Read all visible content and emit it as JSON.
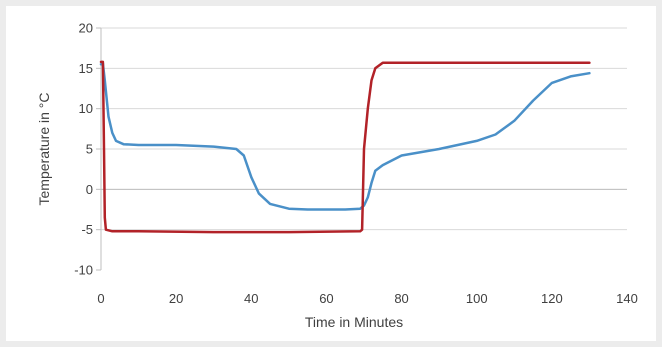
{
  "chart_data": {
    "type": "line",
    "title": "",
    "xlabel": "Time in Minutes",
    "ylabel": "Temperature in °C",
    "xlim": [
      0,
      140
    ],
    "ylim": [
      -10,
      20
    ],
    "x_ticks": [
      0,
      20,
      40,
      60,
      80,
      100,
      120,
      140
    ],
    "y_ticks": [
      -10,
      -5,
      0,
      5,
      10,
      15,
      20
    ],
    "grid": "horizontal",
    "legend": "none",
    "series": [
      {
        "color": "#4a90c8",
        "points": [
          [
            0,
            15.5
          ],
          [
            0.5,
            15.6
          ],
          [
            1,
            13.5
          ],
          [
            2,
            9.0
          ],
          [
            3,
            7.0
          ],
          [
            4,
            6.0
          ],
          [
            6,
            5.6
          ],
          [
            10,
            5.5
          ],
          [
            20,
            5.5
          ],
          [
            30,
            5.3
          ],
          [
            36,
            5.0
          ],
          [
            38,
            4.2
          ],
          [
            40,
            1.5
          ],
          [
            42,
            -0.5
          ],
          [
            45,
            -1.8
          ],
          [
            50,
            -2.4
          ],
          [
            55,
            -2.5
          ],
          [
            60,
            -2.5
          ],
          [
            65,
            -2.5
          ],
          [
            69,
            -2.4
          ],
          [
            70,
            -2.0
          ],
          [
            71,
            -1.0
          ],
          [
            72,
            0.8
          ],
          [
            73,
            2.3
          ],
          [
            75,
            3.0
          ],
          [
            80,
            4.2
          ],
          [
            90,
            5.0
          ],
          [
            100,
            6.0
          ],
          [
            105,
            6.8
          ],
          [
            110,
            8.5
          ],
          [
            115,
            11.0
          ],
          [
            120,
            13.2
          ],
          [
            125,
            14.0
          ],
          [
            130,
            14.4
          ]
        ]
      },
      {
        "color": "#b22228",
        "points": [
          [
            0,
            15.8
          ],
          [
            0.5,
            15.8
          ],
          [
            0.8,
            5.0
          ],
          [
            1.0,
            -3.5
          ],
          [
            1.3,
            -5.0
          ],
          [
            3,
            -5.2
          ],
          [
            10,
            -5.2
          ],
          [
            30,
            -5.3
          ],
          [
            50,
            -5.3
          ],
          [
            69,
            -5.2
          ],
          [
            69.5,
            -5.0
          ],
          [
            70,
            5.0
          ],
          [
            71,
            10.0
          ],
          [
            72,
            13.5
          ],
          [
            73,
            15.0
          ],
          [
            75,
            15.7
          ],
          [
            80,
            15.7
          ],
          [
            100,
            15.7
          ],
          [
            120,
            15.7
          ],
          [
            130,
            15.7
          ]
        ]
      }
    ]
  }
}
